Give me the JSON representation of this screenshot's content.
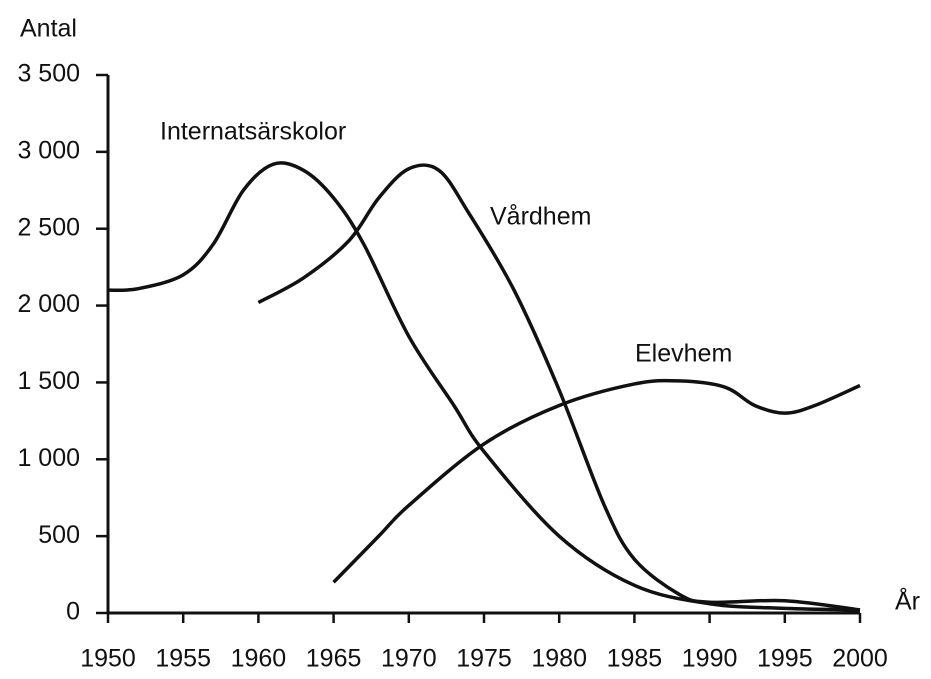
{
  "chart_data": {
    "type": "line",
    "y_label": "Antal",
    "x_label": "År",
    "xlim": [
      1950,
      2000
    ],
    "xticks": [
      1950,
      1955,
      1960,
      1965,
      1970,
      1975,
      1980,
      1985,
      1990,
      1995,
      2000
    ],
    "ylim": [
      0,
      3500
    ],
    "yticks": [
      0,
      500,
      {
        "value": 1000,
        "label": "1 000"
      },
      {
        "value": 1500,
        "label": "1 500"
      },
      {
        "value": 2000,
        "label": "2 000"
      },
      {
        "value": 2500,
        "label": "2 500"
      },
      {
        "value": 3000,
        "label": "3 000"
      },
      {
        "value": 3500,
        "label": "3 500"
      }
    ],
    "grid": false,
    "series": [
      {
        "name": "Internatsärskolor",
        "color": "#111111",
        "x": [
          1950,
          1952,
          1955,
          1957,
          1959,
          1961,
          1963,
          1965,
          1967,
          1970,
          1973,
          1975,
          1980,
          1985,
          1990,
          1995,
          2000
        ],
        "values": [
          2100,
          2110,
          2200,
          2400,
          2750,
          2920,
          2880,
          2700,
          2400,
          1800,
          1350,
          1050,
          500,
          180,
          60,
          30,
          20
        ]
      },
      {
        "name": "Vårdhem",
        "color": "#111111",
        "x": [
          1960,
          1963,
          1966,
          1968,
          1970,
          1972,
          1974,
          1977,
          1980,
          1983,
          1985,
          1988,
          1990,
          1995,
          2000
        ],
        "values": [
          2020,
          2180,
          2420,
          2700,
          2890,
          2880,
          2600,
          2100,
          1450,
          700,
          350,
          120,
          70,
          80,
          20
        ]
      },
      {
        "name": "Elevhem",
        "color": "#111111",
        "x": [
          1965,
          1968,
          1970,
          1975,
          1980,
          1985,
          1988,
          1991,
          1993,
          1995,
          1997,
          2000
        ],
        "values": [
          200,
          500,
          700,
          1100,
          1350,
          1490,
          1510,
          1470,
          1350,
          1300,
          1350,
          1480
        ]
      }
    ]
  }
}
